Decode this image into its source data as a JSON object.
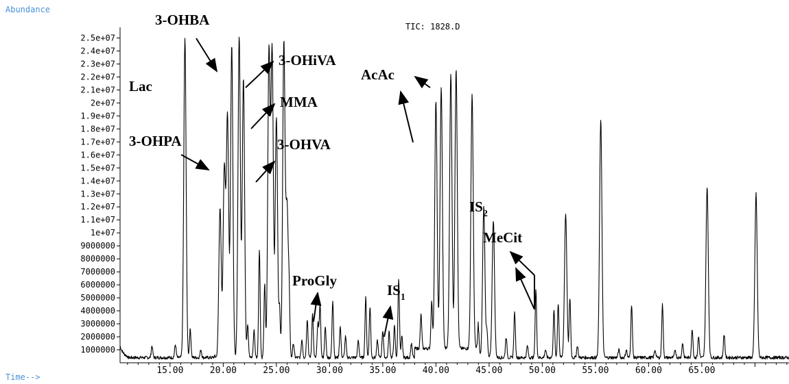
{
  "header": {
    "y_title": "Abundance",
    "x_title": "Time-->",
    "tic_label": "TIC: 1828.D",
    "axis_color": "#000000",
    "label_color": "#4a90d9"
  },
  "chart_data": {
    "type": "line",
    "title": "TIC: 1828.D",
    "xlabel": "Time-->",
    "ylabel": "Abundance",
    "xlim": [
      10.3,
      73.2
    ],
    "ylim": [
      0,
      25500000
    ],
    "x_ticks": [
      "15.00",
      "20.00",
      "25.00",
      "30.00",
      "35.00",
      "40.00",
      "45.00",
      "50.00",
      "55.00",
      "60.00",
      "65.00"
    ],
    "x_tick_values": [
      15,
      20,
      25,
      30,
      35,
      40,
      45,
      50,
      55,
      60,
      65
    ],
    "y_ticks": [
      "2.5e+07",
      "2.4e+07",
      "2.3e+07",
      "2.2e+07",
      "2.1e+07",
      "2e+07",
      "1.9e+07",
      "1.8e+07",
      "1.7e+07",
      "1.6e+07",
      "1.5e+07",
      "1.4e+07",
      "1.3e+07",
      "1.2e+07",
      "1.1e+07",
      "1e+07",
      "9000000",
      "8000000",
      "7000000",
      "6000000",
      "5000000",
      "4000000",
      "3000000",
      "2000000",
      "1000000"
    ],
    "y_tick_values": [
      25000000,
      24000000,
      23000000,
      22000000,
      21000000,
      20000000,
      19000000,
      18000000,
      17000000,
      16000000,
      15000000,
      14000000,
      13000000,
      12000000,
      11000000,
      10000000,
      9000000,
      8000000,
      7000000,
      6000000,
      5000000,
      4000000,
      3000000,
      2000000,
      1000000
    ],
    "baseline": 400000,
    "series": [
      {
        "line_color": "#000000",
        "peaks": [
          [
            13.3,
            1300000
          ],
          [
            15.5,
            1400000
          ],
          [
            16.4,
            25000000
          ],
          [
            16.9,
            2600000
          ],
          [
            17.9,
            1000000
          ],
          [
            19.2,
            500000
          ],
          [
            19.7,
            12000000
          ],
          [
            20.1,
            15000000
          ],
          [
            20.4,
            19000000
          ],
          [
            20.8,
            24500000
          ],
          [
            21.5,
            25200000
          ],
          [
            21.9,
            22000000
          ],
          [
            22.3,
            3000000
          ],
          [
            22.9,
            2500000
          ],
          [
            23.4,
            8800000
          ],
          [
            23.9,
            6000000
          ],
          [
            24.3,
            23900000
          ],
          [
            24.6,
            24000000
          ],
          [
            25.0,
            19000000
          ],
          [
            25.3,
            4000000
          ],
          [
            25.7,
            24600000
          ],
          [
            26.0,
            12000000
          ],
          [
            26.2,
            4500000
          ],
          [
            26.6,
            1500000
          ],
          [
            27.4,
            1800000
          ],
          [
            27.9,
            3400000
          ],
          [
            28.4,
            3800000
          ],
          [
            28.9,
            3000000
          ],
          [
            29.1,
            4500000
          ],
          [
            29.6,
            2700000
          ],
          [
            30.3,
            4800000
          ],
          [
            31.0,
            2800000
          ],
          [
            31.5,
            2000000
          ],
          [
            32.7,
            1700000
          ],
          [
            33.4,
            5000000
          ],
          [
            33.8,
            4300000
          ],
          [
            34.5,
            1700000
          ],
          [
            35.0,
            2500000
          ],
          [
            35.6,
            2400000
          ],
          [
            36.1,
            2800000
          ],
          [
            36.5,
            6500000
          ],
          [
            36.8,
            2000000
          ],
          [
            37.7,
            1500000
          ],
          [
            38.6,
            3000000
          ],
          [
            39.6,
            4000000
          ],
          [
            40.0,
            19500000
          ],
          [
            40.5,
            20500000
          ],
          [
            41.4,
            21500000
          ],
          [
            41.9,
            22000000
          ],
          [
            43.4,
            20000000
          ],
          [
            44.0,
            2500000
          ],
          [
            44.5,
            12000000
          ],
          [
            44.8,
            2300000
          ],
          [
            45.4,
            11000000
          ],
          [
            46.6,
            2000000
          ],
          [
            47.4,
            3900000
          ],
          [
            48.6,
            1300000
          ],
          [
            49.4,
            5600000
          ],
          [
            50.3,
            1000000
          ],
          [
            51.1,
            4000000
          ],
          [
            51.5,
            4600000
          ],
          [
            52.2,
            11500000
          ],
          [
            52.6,
            5000000
          ],
          [
            53.3,
            1300000
          ],
          [
            55.5,
            18800000
          ],
          [
            57.2,
            1000000
          ],
          [
            57.9,
            1000000
          ],
          [
            58.4,
            4500000
          ],
          [
            60.6,
            1000000
          ],
          [
            61.3,
            4500000
          ],
          [
            62.5,
            1000000
          ],
          [
            63.2,
            1500000
          ],
          [
            64.1,
            2600000
          ],
          [
            64.7,
            2000000
          ],
          [
            65.5,
            13500000
          ],
          [
            67.1,
            2200000
          ],
          [
            69.1,
            400000
          ],
          [
            70.1,
            13000000
          ]
        ]
      }
    ],
    "annotations": [
      {
        "text": "3-OHBA",
        "sub": ""
      },
      {
        "text": "Lac",
        "sub": ""
      },
      {
        "text": "3-OHiVA",
        "sub": ""
      },
      {
        "text": "MMA",
        "sub": ""
      },
      {
        "text": "3-OHPA",
        "sub": ""
      },
      {
        "text": "3-OHVA",
        "sub": ""
      },
      {
        "text": "AcAc",
        "sub": ""
      },
      {
        "text": "IS",
        "sub": "2"
      },
      {
        "text": "MeCit",
        "sub": ""
      },
      {
        "text": "ProGly",
        "sub": ""
      },
      {
        "text": "IS",
        "sub": "1"
      }
    ]
  }
}
